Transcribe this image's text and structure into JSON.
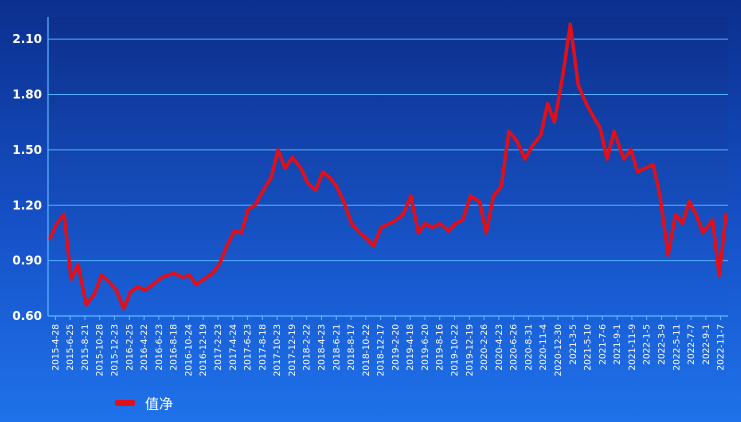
{
  "chart_data": {
    "type": "line",
    "title": "",
    "xlabel": "",
    "ylabel": "",
    "ylim": [
      0.6,
      2.22
    ],
    "y_ticks": [
      "0.60",
      "0.90",
      "1.20",
      "1.50",
      "1.80",
      "2.10"
    ],
    "y_tick_values": [
      0.6,
      0.9,
      1.2,
      1.5,
      1.8,
      2.1
    ],
    "x_tick_labels": [
      "2015-4-28",
      "2015-6-25",
      "2015-8-21",
      "2015-10-28",
      "2015-12-23",
      "2016-2-25",
      "2016-4-22",
      "2016-6-23",
      "2016-8-18",
      "2016-10-24",
      "2016-12-19",
      "2017-2-23",
      "2017-4-24",
      "2017-6-23",
      "2017-8-18",
      "2017-10-23",
      "2017-12-19",
      "2018-2-22",
      "2018-4-23",
      "2018-6-21",
      "2018-8-17",
      "2018-10-22",
      "2018-12-17",
      "2019-2-20",
      "2019-4-18",
      "2019-6-20",
      "2019-8-16",
      "2019-10-22",
      "2019-12-19",
      "2020-2-26",
      "2020-4-23",
      "2020-6-26",
      "2020-8-31",
      "2020-11-4",
      "2020-12-30",
      "2021-3-5",
      "2021-5-10",
      "2021-7-6",
      "2021-9-1",
      "2021-11-9",
      "2022-1-5",
      "2022-3-9",
      "2022-5-11",
      "2022-7-7",
      "2022-9-1",
      "2022-11-7"
    ],
    "grid": true,
    "legend_position": "bottom-left",
    "line_color": "#e0101a",
    "series": [
      {
        "name": "值净",
        "x": [
          "2015-4-28",
          "2015-5-26",
          "2015-6-25",
          "2015-7-24",
          "2015-8-21",
          "2015-9-24",
          "2015-10-28",
          "2015-11-25",
          "2015-12-23",
          "2016-1-26",
          "2016-2-25",
          "2016-3-24",
          "2016-4-22",
          "2016-5-23",
          "2016-6-23",
          "2016-7-21",
          "2016-8-18",
          "2016-9-20",
          "2016-10-24",
          "2016-11-21",
          "2016-12-19",
          "2017-1-20",
          "2017-2-23",
          "2017-3-24",
          "2017-4-24",
          "2017-5-24",
          "2017-6-23",
          "2017-7-21",
          "2017-8-18",
          "2017-9-20",
          "2017-10-23",
          "2017-11-20",
          "2017-12-19",
          "2018-1-19",
          "2018-2-22",
          "2018-3-22",
          "2018-4-23",
          "2018-5-23",
          "2018-6-21",
          "2018-7-19",
          "2018-8-17",
          "2018-9-19",
          "2018-10-22",
          "2018-11-19",
          "2018-12-17",
          "2019-1-18",
          "2019-2-20",
          "2019-3-20",
          "2019-4-18",
          "2019-5-20",
          "2019-6-20",
          "2019-7-18",
          "2019-8-16",
          "2019-9-18",
          "2019-10-22",
          "2019-11-19",
          "2019-12-19",
          "2020-1-20",
          "2020-2-26",
          "2020-3-25",
          "2020-4-23",
          "2020-5-25",
          "2020-6-26",
          "2020-7-28",
          "2020-8-31",
          "2020-9-29",
          "2020-11-4",
          "2020-12-2",
          "2020-12-30",
          "2021-2-2",
          "2021-3-5",
          "2021-4-7",
          "2021-5-10",
          "2021-6-8",
          "2021-7-6",
          "2021-8-3",
          "2021-9-1",
          "2021-10-11",
          "2021-11-9",
          "2021-12-7",
          "2022-1-5",
          "2022-2-9",
          "2022-3-9",
          "2022-4-11",
          "2022-5-11",
          "2022-6-9",
          "2022-7-7",
          "2022-8-4",
          "2022-9-1",
          "2022-10-11",
          "2022-11-7",
          "2022-12-5"
        ],
        "values": [
          1.02,
          1.1,
          1.15,
          0.8,
          0.88,
          0.66,
          0.72,
          0.82,
          0.79,
          0.74,
          0.64,
          0.73,
          0.76,
          0.74,
          0.77,
          0.8,
          0.82,
          0.83,
          0.81,
          0.82,
          0.77,
          0.8,
          0.83,
          0.88,
          0.98,
          1.06,
          1.05,
          1.18,
          1.2,
          1.28,
          1.35,
          1.5,
          1.4,
          1.46,
          1.4,
          1.32,
          1.28,
          1.38,
          1.35,
          1.3,
          1.22,
          1.1,
          1.05,
          1.02,
          0.98,
          1.08,
          1.1,
          1.12,
          1.15,
          1.25,
          1.05,
          1.1,
          1.08,
          1.1,
          1.06,
          1.1,
          1.12,
          1.25,
          1.22,
          1.05,
          1.25,
          1.3,
          1.6,
          1.55,
          1.45,
          1.52,
          1.58,
          1.75,
          1.65,
          1.9,
          2.18,
          1.85,
          1.75,
          1.68,
          1.62,
          1.45,
          1.6,
          1.45,
          1.5,
          1.38,
          1.4,
          1.42,
          1.25,
          0.93,
          1.15,
          1.1,
          1.22,
          1.15,
          1.05,
          1.12,
          0.82,
          1.15
        ]
      }
    ]
  }
}
